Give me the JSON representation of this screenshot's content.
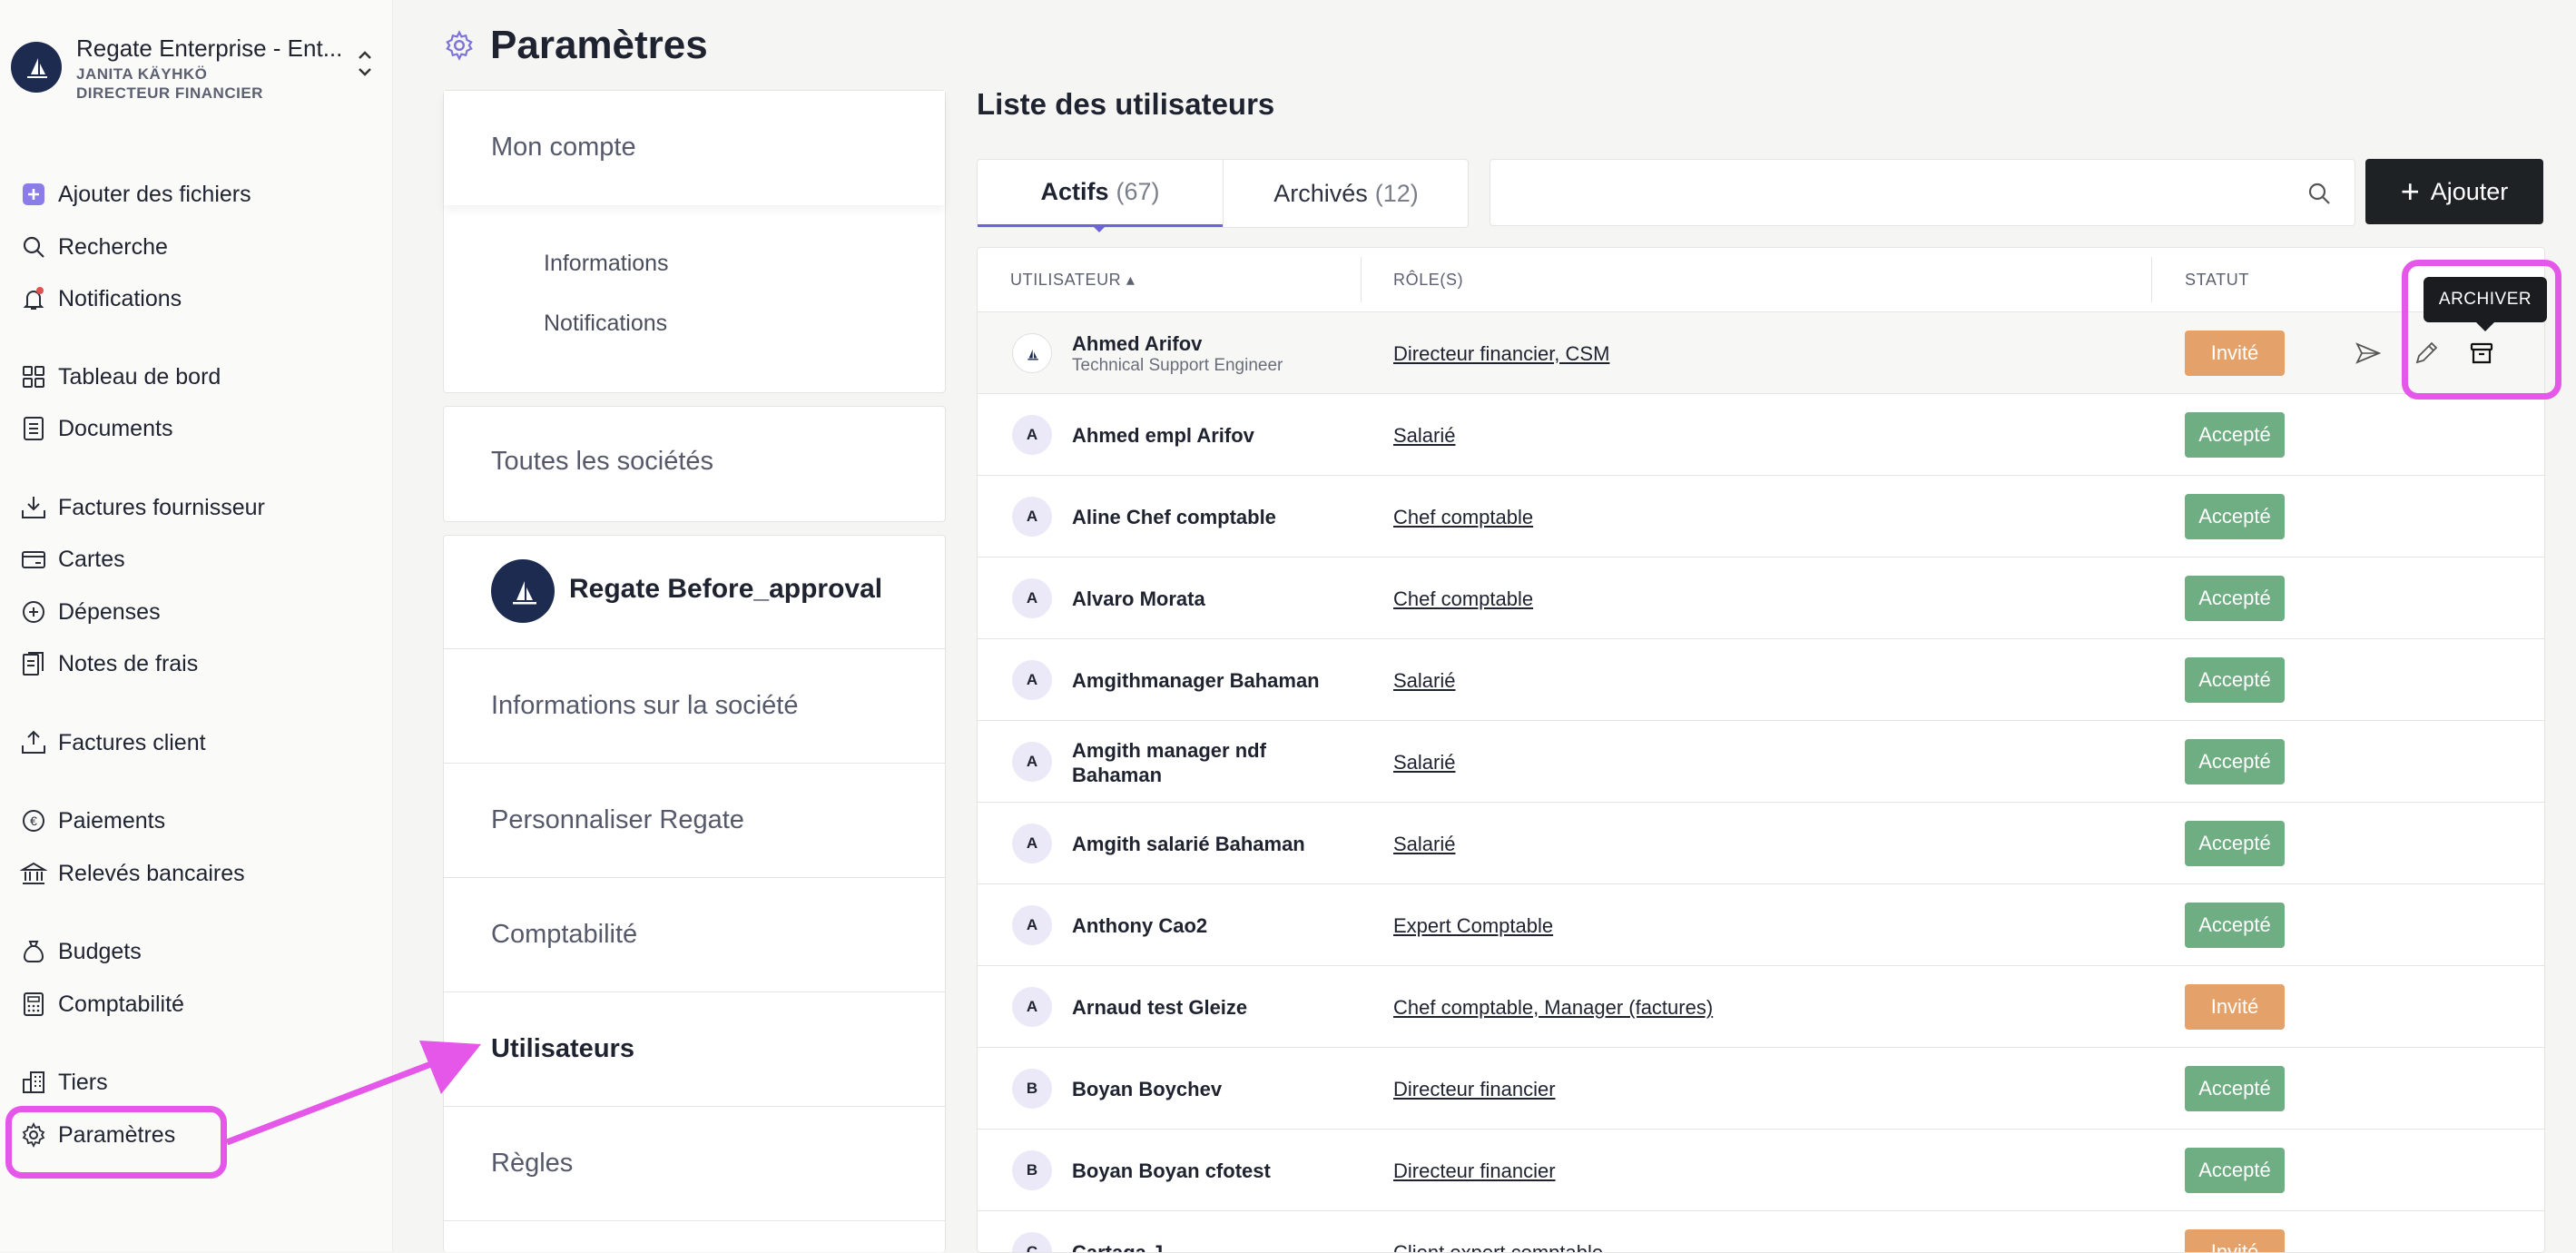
{
  "org": {
    "name": "Regate Enterprise - Ent...",
    "user": "JANITA KÄYHKÖ",
    "role": "DIRECTEUR FINANCIER"
  },
  "sidebar": {
    "items": [
      {
        "label": "Ajouter des fichiers",
        "icon": "plus-square-icon"
      },
      {
        "label": "Recherche",
        "icon": "search-icon"
      },
      {
        "label": "Notifications",
        "icon": "bell-icon"
      },
      {
        "label": "Tableau de bord",
        "icon": "dashboard-icon"
      },
      {
        "label": "Documents",
        "icon": "document-icon"
      },
      {
        "label": "Factures fournisseur",
        "icon": "download-tray-icon"
      },
      {
        "label": "Cartes",
        "icon": "card-icon"
      },
      {
        "label": "Dépenses",
        "icon": "plus-circle-icon"
      },
      {
        "label": "Notes de frais",
        "icon": "receipt-icon"
      },
      {
        "label": "Factures client",
        "icon": "upload-tray-icon"
      },
      {
        "label": "Paiements",
        "icon": "euro-icon"
      },
      {
        "label": "Relevés bancaires",
        "icon": "bank-icon"
      },
      {
        "label": "Budgets",
        "icon": "money-bag-icon"
      },
      {
        "label": "Comptabilité",
        "icon": "calculator-icon"
      },
      {
        "label": "Tiers",
        "icon": "buildings-icon"
      },
      {
        "label": "Paramètres",
        "icon": "gear-icon"
      }
    ]
  },
  "header": {
    "title": "Paramètres"
  },
  "settings_nav": {
    "account_title": "Mon compte",
    "account_items": [
      "Informations",
      "Notifications"
    ],
    "all_companies": "Toutes les sociétés",
    "company_name": "Regate Before_approval",
    "company_menu": [
      "Informations sur la société",
      "Personnaliser Regate",
      "Comptabilité",
      "Utilisateurs",
      "Règles"
    ]
  },
  "users": {
    "title": "Liste des utilisateurs",
    "tabs": [
      {
        "label": "Actifs",
        "count": "(67)"
      },
      {
        "label": "Archivés",
        "count": "(12)"
      }
    ],
    "search_placeholder": "",
    "add_label": "Ajouter",
    "columns": [
      "UTILISATEUR ▴",
      "RÔLE(S)",
      "STATUT"
    ],
    "tooltip": "ARCHIVER",
    "rows": [
      {
        "avatar": "",
        "name": "Ahmed Arifov",
        "job": "Technical Support Engineer",
        "role": "Directeur financier, CSM",
        "status": "Invité"
      },
      {
        "avatar": "A",
        "name": "Ahmed empl Arifov",
        "job": "",
        "role": "Salarié",
        "status": "Accepté"
      },
      {
        "avatar": "A",
        "name": "Aline Chef comptable",
        "job": "",
        "role": "Chef comptable",
        "status": "Accepté"
      },
      {
        "avatar": "A",
        "name": "Alvaro Morata",
        "job": "",
        "role": "Chef comptable",
        "status": "Accepté"
      },
      {
        "avatar": "A",
        "name": "Amgithmanager Bahaman",
        "job": "",
        "role": "Salarié",
        "status": "Accepté"
      },
      {
        "avatar": "A",
        "name": "Amgith manager ndf",
        "name2": "Bahaman",
        "job": "",
        "role": "Salarié",
        "status": "Accepté"
      },
      {
        "avatar": "A",
        "name": "Amgith salarié Bahaman",
        "job": "",
        "role": "Salarié",
        "status": "Accepté"
      },
      {
        "avatar": "A",
        "name": "Anthony Cao2",
        "job": "",
        "role": "Expert Comptable",
        "status": "Accepté"
      },
      {
        "avatar": "A",
        "name": "Arnaud test Gleize",
        "job": "",
        "role": "Chef comptable, Manager (factures)",
        "status": "Invité"
      },
      {
        "avatar": "B",
        "name": "Boyan Boychev",
        "job": "",
        "role": "Directeur financier",
        "status": "Accepté"
      },
      {
        "avatar": "B",
        "name": "Boyan Boyan cfotest",
        "job": "",
        "role": "Directeur financier",
        "status": "Accepté"
      },
      {
        "avatar": "C",
        "name": "Cartaga J",
        "job": "",
        "role": "Client expert comptable",
        "status": "Invité"
      }
    ]
  },
  "colors": {
    "accent": "#6c63d8",
    "highlight": "#e457e8",
    "accepted": "#6fae83",
    "invited": "#e4a26a",
    "dark": "#1f2224"
  }
}
